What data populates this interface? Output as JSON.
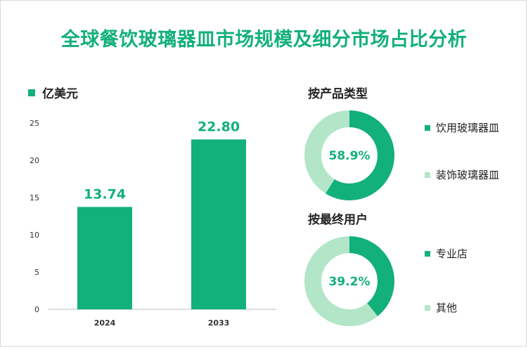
{
  "title": "全球餐饮玻璃器皿市场规模及细分市场占比分析",
  "colors": {
    "accent": "#12b07a",
    "light": "#b3e6c8"
  },
  "chart_data": [
    {
      "type": "bar",
      "series_name": "亿美元",
      "categories": [
        "2024",
        "2033"
      ],
      "values": [
        13.74,
        22.8
      ],
      "value_labels": [
        "13.74",
        "22.80"
      ],
      "yticks": [
        "0",
        "5",
        "10",
        "15",
        "20",
        "25"
      ],
      "ylim": [
        0,
        25
      ]
    },
    {
      "type": "pie",
      "title": "按产品类型",
      "center_label": "58.9%",
      "labels": [
        "饮用玻璃器皿",
        "装饰玻璃器皿"
      ],
      "values": [
        58.9,
        41.1
      ]
    },
    {
      "type": "pie",
      "title": "按最终用户",
      "center_label": "39.2%",
      "labels": [
        "专业店",
        "其他"
      ],
      "values": [
        39.2,
        60.8
      ]
    }
  ]
}
